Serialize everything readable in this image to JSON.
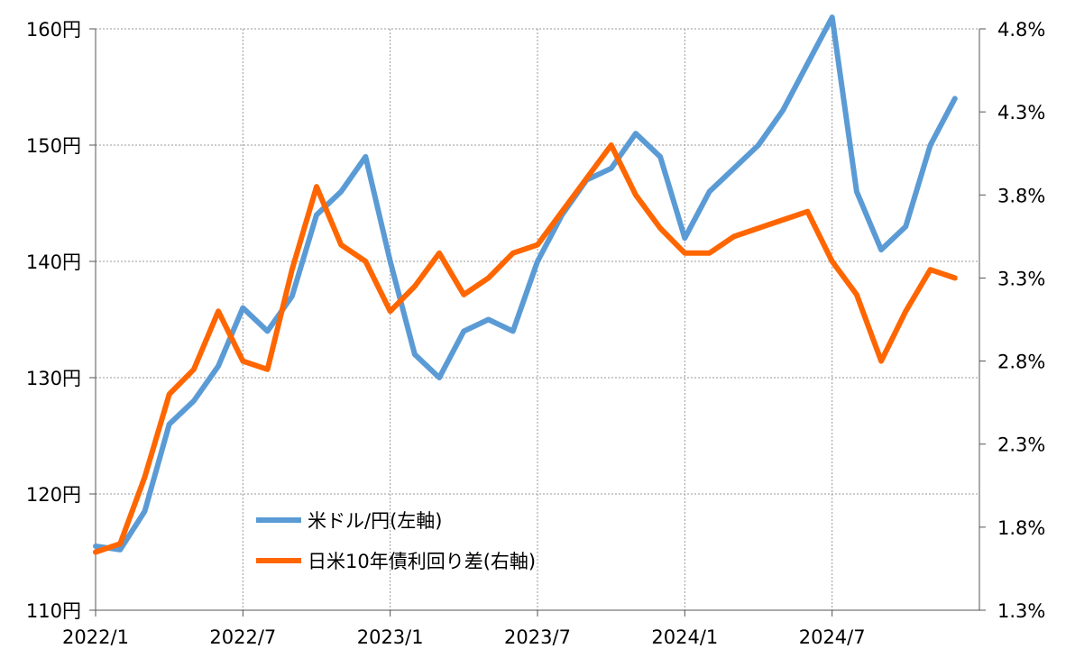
{
  "chart_data": {
    "type": "line",
    "title": "",
    "xlabel": "",
    "ylabel": "",
    "y2label": "",
    "x_ticks": [
      "2022/1",
      "2022/7",
      "2023/1",
      "2023/7",
      "2024/1",
      "2024/7"
    ],
    "x_range": [
      "2022-01",
      "2025-01"
    ],
    "y_left": {
      "ticks": [
        "110円",
        "120円",
        "130円",
        "140円",
        "150円",
        "160円"
      ],
      "ylim": [
        110,
        160
      ]
    },
    "y_right": {
      "ticks": [
        "1.3%",
        "1.8%",
        "2.3%",
        "2.8%",
        "3.3%",
        "3.8%",
        "4.3%",
        "4.8%"
      ],
      "ylim": [
        1.3,
        4.8
      ]
    },
    "grid": true,
    "legend_position": "bottom-left",
    "series": [
      {
        "name": "米ドル/円(左軸)",
        "axis": "left",
        "color": "#5b9bd5",
        "x": [
          "2022-01",
          "2022-02",
          "2022-03",
          "2022-04",
          "2022-05",
          "2022-06",
          "2022-07",
          "2022-08",
          "2022-09",
          "2022-10",
          "2022-11",
          "2022-12",
          "2023-01",
          "2023-02",
          "2023-03",
          "2023-04",
          "2023-05",
          "2023-06",
          "2023-07",
          "2023-08",
          "2023-09",
          "2023-10",
          "2023-11",
          "2023-12",
          "2024-01",
          "2024-02",
          "2024-03",
          "2024-04",
          "2024-05",
          "2024-06",
          "2024-07",
          "2024-08",
          "2024-09",
          "2024-10",
          "2024-11",
          "2024-12"
        ],
        "values": [
          115.5,
          115.2,
          118.5,
          126,
          128,
          131,
          136,
          134,
          137,
          144,
          146,
          149,
          140,
          132,
          130,
          134,
          135,
          134,
          140,
          144,
          147,
          148,
          151,
          149,
          142,
          146,
          148,
          150,
          153,
          157,
          161,
          146,
          141,
          143,
          150,
          154
        ]
      },
      {
        "name": "日米10年債利回り差(右軸)",
        "axis": "right",
        "color": "#ff6600",
        "x": [
          "2022-01",
          "2022-02",
          "2022-03",
          "2022-04",
          "2022-05",
          "2022-06",
          "2022-07",
          "2022-08",
          "2022-09",
          "2022-10",
          "2022-11",
          "2022-12",
          "2023-01",
          "2023-02",
          "2023-03",
          "2023-04",
          "2023-05",
          "2023-06",
          "2023-07",
          "2023-08",
          "2023-09",
          "2023-10",
          "2023-11",
          "2023-12",
          "2024-01",
          "2024-02",
          "2024-03",
          "2024-04",
          "2024-05",
          "2024-06",
          "2024-07",
          "2024-08",
          "2024-09",
          "2024-10",
          "2024-11",
          "2024-12"
        ],
        "values": [
          1.65,
          1.7,
          2.1,
          2.6,
          2.75,
          3.1,
          2.8,
          2.75,
          3.35,
          3.85,
          3.5,
          3.4,
          3.1,
          3.25,
          3.45,
          3.2,
          3.3,
          3.45,
          3.5,
          3.7,
          3.9,
          4.1,
          3.8,
          3.6,
          3.45,
          3.45,
          3.55,
          3.6,
          3.65,
          3.7,
          3.4,
          3.2,
          2.8,
          3.1,
          3.35,
          3.3
        ]
      }
    ]
  }
}
